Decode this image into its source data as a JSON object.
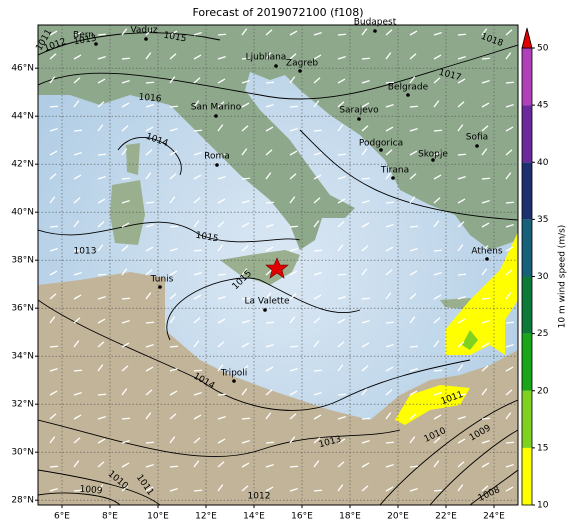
{
  "title": "Forecast of 2019072100 (f108)",
  "map": {
    "xlim": [
      5,
      25
    ],
    "ylim": [
      27.8,
      47.8
    ],
    "xticks": [
      {
        "value": 6,
        "label": "6°E"
      },
      {
        "value": 8,
        "label": "8°E"
      },
      {
        "value": 10,
        "label": "10°E"
      },
      {
        "value": 12,
        "label": "12°E"
      },
      {
        "value": 14,
        "label": "14°E"
      },
      {
        "value": 16,
        "label": "16°E"
      },
      {
        "value": 18,
        "label": "18°E"
      },
      {
        "value": 20,
        "label": "20°E"
      },
      {
        "value": 22,
        "label": "22°E"
      },
      {
        "value": 24,
        "label": "24°E"
      }
    ],
    "yticks": [
      {
        "value": 28,
        "label": "28°N"
      },
      {
        "value": 30,
        "label": "30°N"
      },
      {
        "value": 32,
        "label": "32°N"
      },
      {
        "value": 34,
        "label": "34°N"
      },
      {
        "value": 36,
        "label": "36°N"
      },
      {
        "value": 38,
        "label": "38°N"
      },
      {
        "value": 40,
        "label": "40°N"
      },
      {
        "value": 42,
        "label": "42°N"
      },
      {
        "value": 44,
        "label": "44°N"
      },
      {
        "value": 46,
        "label": "46°N"
      }
    ],
    "grid": true,
    "cities": [
      "Bern",
      "Vaduz",
      "Budapest",
      "Ljubliana",
      "Zagreb",
      "Belgrade",
      "San Marino",
      "Sarajevo",
      "Podgorica",
      "Sofia",
      "Skopje",
      "Roma",
      "Tirana",
      "Athens",
      "Tunis",
      "La Valette",
      "Tripoli"
    ],
    "isobar_labels": [
      1011,
      1012,
      1013,
      1015,
      1018,
      1017,
      1016,
      1014,
      1013,
      1015,
      1015,
      1014,
      1011,
      1010,
      1009,
      1013,
      1012,
      1010,
      1011,
      1009,
      1008
    ]
  },
  "colorbar": {
    "label": "10 m wind speed (m/s)",
    "lim": [
      10,
      50
    ],
    "ticks": [
      10,
      15,
      20,
      25,
      30,
      35,
      40,
      45,
      50
    ],
    "colors": [
      "#ffff00",
      "#7fd320",
      "#19a619",
      "#0e7a3a",
      "#16607a",
      "#1c2f6e",
      "#6a2a9c",
      "#b040b8"
    ],
    "extend_color": "#e00000"
  }
}
